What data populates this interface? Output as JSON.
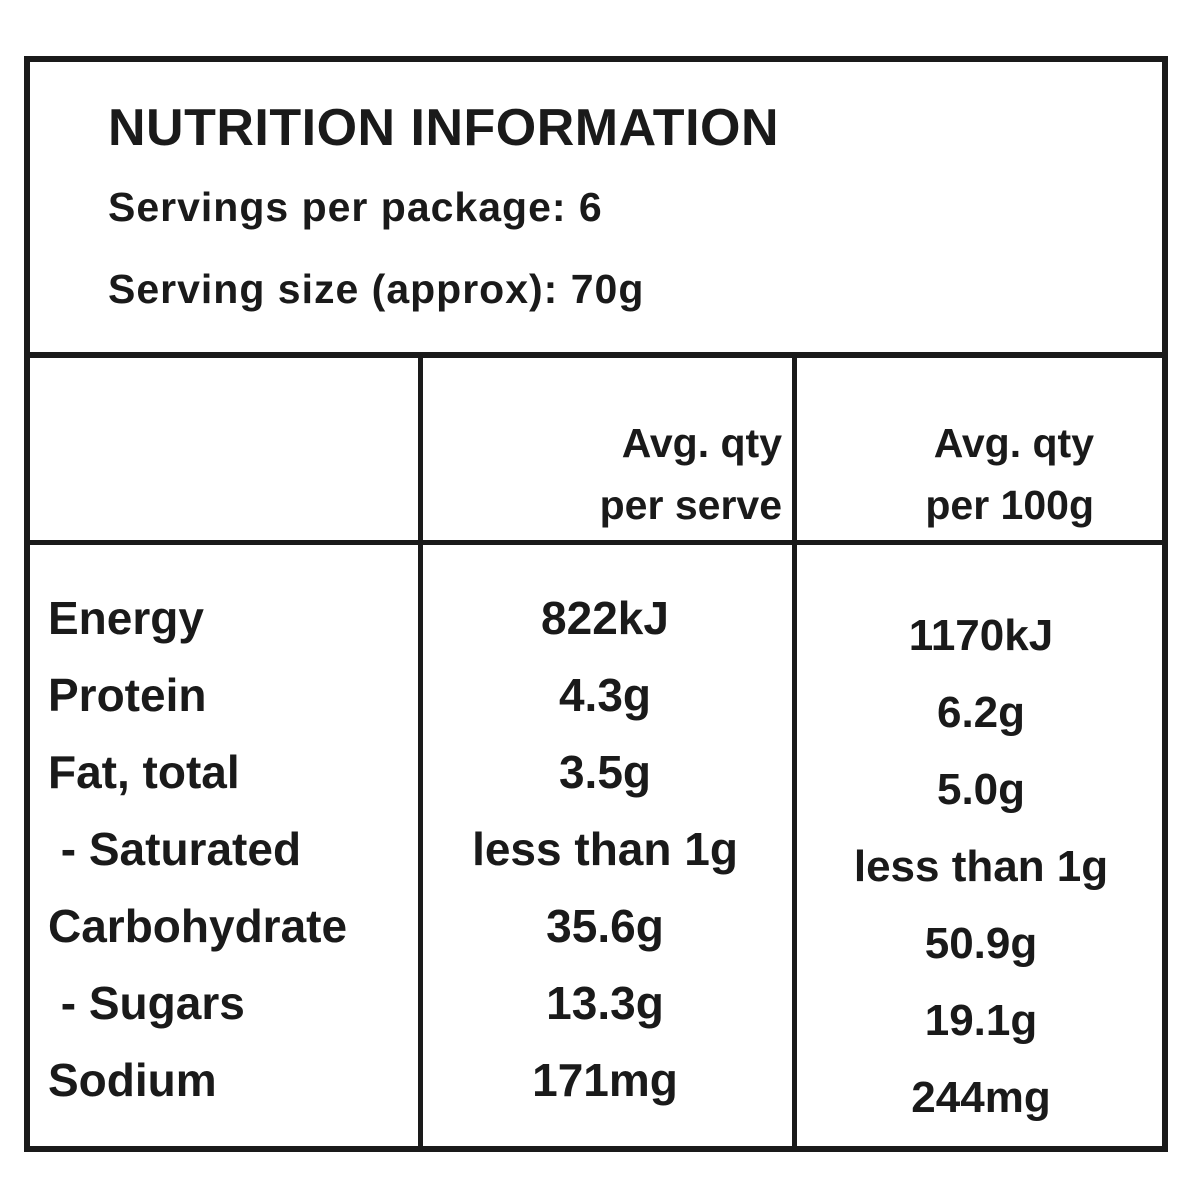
{
  "panel": {
    "title": "NUTRITION INFORMATION",
    "servings_per_package": "Servings per package: 6",
    "serving_size": "Serving size (approx): 70g"
  },
  "columns": {
    "per_serve_line1": "Avg. qty",
    "per_serve_line2": "per serve",
    "per_100g_line1": "Avg. qty",
    "per_100g_line2": "per 100g"
  },
  "rows": [
    {
      "label": "Energy",
      "per_serve": "822kJ",
      "per_100g": "1170kJ"
    },
    {
      "label": "Protein",
      "per_serve": "4.3g",
      "per_100g": "6.2g"
    },
    {
      "label": "Fat, total",
      "per_serve": "3.5g",
      "per_100g": "5.0g"
    },
    {
      "label": " - Saturated",
      "per_serve": "less than 1g",
      "per_100g": "less than 1g"
    },
    {
      "label": "Carbohydrate",
      "per_serve": "35.6g",
      "per_100g": "50.9g"
    },
    {
      "label": " - Sugars",
      "per_serve": "13.3g",
      "per_100g": "19.1g"
    },
    {
      "label": "Sodium",
      "per_serve": "171mg",
      "per_100g": "244mg"
    }
  ]
}
